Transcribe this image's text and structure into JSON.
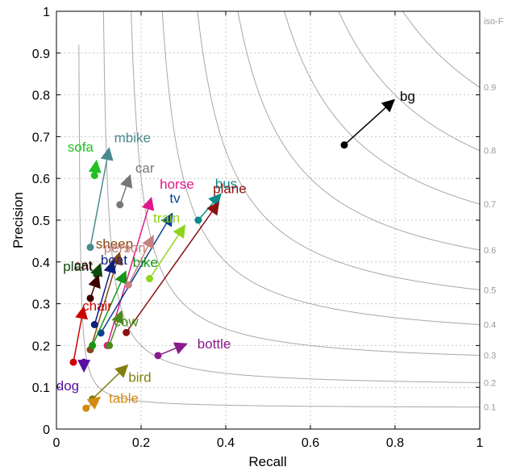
{
  "chart_data": {
    "type": "scatter",
    "xlabel": "Recall",
    "ylabel": "Precision",
    "xlim": [
      0,
      1
    ],
    "ylim": [
      0,
      1
    ],
    "xticks": [
      0,
      0.2,
      0.4,
      0.6,
      0.8,
      1
    ],
    "xtick_labels": [
      "0",
      "0.2",
      "0.4",
      "0.6",
      "0.8",
      "1"
    ],
    "yticks": [
      0,
      0.1,
      0.2,
      0.3,
      0.4,
      0.5,
      0.6,
      0.7,
      0.8,
      0.9,
      1
    ],
    "ytick_labels": [
      "0",
      "0.1",
      "0.2",
      "0.3",
      "0.4",
      "0.5",
      "0.6",
      "0.7",
      "0.8",
      "0.9",
      "1"
    ],
    "grid": true,
    "iso_f": {
      "title": "iso-F",
      "values": [
        0.1,
        0.2,
        0.3,
        0.4,
        0.5,
        0.6,
        0.7,
        0.8,
        0.9
      ],
      "labels": [
        "0.1",
        "0.2",
        "0.3",
        "0.4",
        "0.5",
        "0.6",
        "0.7",
        "0.8",
        "0.9"
      ]
    },
    "categories": [
      {
        "name": "bg",
        "color": "#000000",
        "start": [
          0.68,
          0.68
        ],
        "end": [
          0.8,
          0.79
        ]
      },
      {
        "name": "mbike",
        "color": "#4a8a8f",
        "start": [
          0.08,
          0.435
        ],
        "end": [
          0.125,
          0.675
        ]
      },
      {
        "name": "sofa",
        "color": "#22c022",
        "start": [
          0.09,
          0.607
        ],
        "end": [
          0.095,
          0.645
        ]
      },
      {
        "name": "car",
        "color": "#777777",
        "start": [
          0.15,
          0.537
        ],
        "end": [
          0.175,
          0.61
        ]
      },
      {
        "name": "horse",
        "color": "#e0188a",
        "start": [
          0.12,
          0.2
        ],
        "end": [
          0.225,
          0.556
        ]
      },
      {
        "name": "tv",
        "color": "#0b3f8f",
        "start": [
          0.105,
          0.23
        ],
        "end": [
          0.275,
          0.518
        ]
      },
      {
        "name": "bus",
        "color": "#0a8a8a",
        "start": [
          0.335,
          0.5
        ],
        "end": [
          0.39,
          0.565
        ]
      },
      {
        "name": "plane",
        "color": "#8b1010",
        "start": [
          0.165,
          0.231
        ],
        "end": [
          0.385,
          0.545
        ]
      },
      {
        "name": "sheep",
        "color": "#8b4513",
        "start": [
          0.08,
          0.19
        ],
        "end": [
          0.15,
          0.425
        ]
      },
      {
        "name": "plant",
        "color": "#0e4a0e",
        "start": [
          0.095,
          0.37
        ],
        "end": [
          0.105,
          0.398
        ]
      },
      {
        "name": "bike",
        "color": "#159515",
        "start": [
          0.085,
          0.2
        ],
        "end": [
          0.165,
          0.38
        ]
      },
      {
        "name": "train",
        "color": "#8dd41a",
        "start": [
          0.22,
          0.36
        ],
        "end": [
          0.305,
          0.49
        ]
      },
      {
        "name": "person",
        "color": "#c87f7f",
        "start": [
          0.17,
          0.345
        ],
        "end": [
          0.23,
          0.465
        ]
      },
      {
        "name": "cat",
        "color": "#3a0000",
        "start": [
          0.08,
          0.313
        ],
        "end": [
          0.1,
          0.37
        ]
      },
      {
        "name": "chair",
        "color": "#cc0000",
        "start": [
          0.04,
          0.16
        ],
        "end": [
          0.065,
          0.295
        ]
      },
      {
        "name": "boat",
        "color": "#0b1f80",
        "start": [
          0.09,
          0.25
        ],
        "end": [
          0.135,
          0.405
        ]
      },
      {
        "name": "cow",
        "color": "#4a8a1a",
        "start": [
          0.125,
          0.2
        ],
        "end": [
          0.155,
          0.285
        ]
      },
      {
        "name": "bottle",
        "color": "#8b1a8b",
        "start": [
          0.24,
          0.176
        ],
        "end": [
          0.31,
          0.205
        ]
      },
      {
        "name": "dog",
        "color": "#5a0fa0",
        "start": [
          0.065,
          0.16
        ],
        "end": [
          0.065,
          0.135
        ]
      },
      {
        "name": "bird",
        "color": "#7f7f10",
        "start": [
          0.085,
          0.072
        ],
        "end": [
          0.17,
          0.155
        ]
      },
      {
        "name": "table",
        "color": "#d08a10",
        "start": [
          0.07,
          0.05
        ],
        "end": [
          0.105,
          0.078
        ]
      }
    ]
  }
}
